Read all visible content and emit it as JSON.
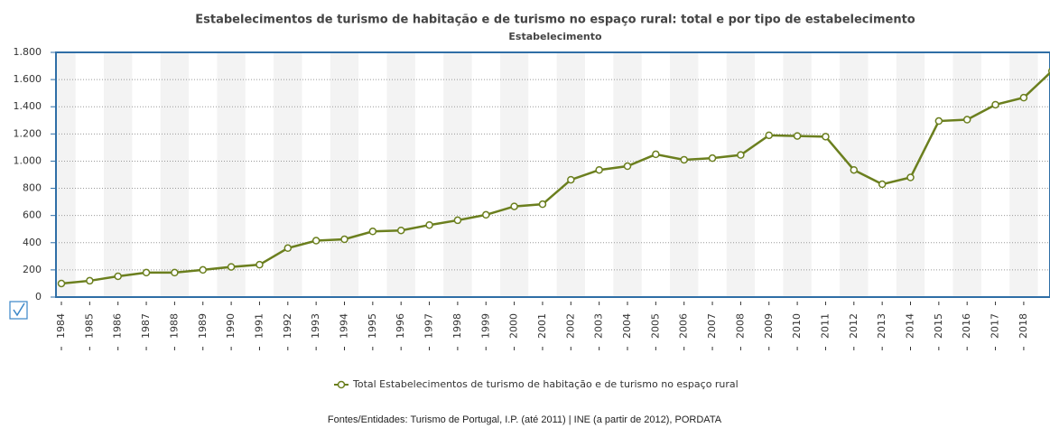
{
  "chart_data": {
    "type": "line",
    "title": "Estabelecimentos de turismo de habitação e de turismo no espaço rural: total e por tipo de estabelecimento",
    "subtitle": "Estabelecimento",
    "source": "Fontes/Entidades: Turismo de Portugal, I.P. (até 2011) | INE (a partir de 2012), PORDATA",
    "categories": [
      "1984",
      "1985",
      "1986",
      "1987",
      "1988",
      "1989",
      "1990",
      "1991",
      "1992",
      "1993",
      "1994",
      "1995",
      "1996",
      "1997",
      "1998",
      "1999",
      "2000",
      "2001",
      "2002",
      "2003",
      "2004",
      "2005",
      "2006",
      "2007",
      "2008",
      "2009",
      "2010",
      "2011",
      "2012",
      "2013",
      "2014",
      "2015",
      "2016",
      "2017",
      "2018",
      null
    ],
    "series": [
      {
        "name": "Total Estabelecimentos de turismo de habitação e de turismo no espaço rural",
        "color": "#6b7f1e",
        "values": [
          100,
          120,
          153,
          180,
          180,
          200,
          222,
          238,
          360,
          415,
          425,
          483,
          490,
          530,
          565,
          605,
          667,
          683,
          863,
          935,
          963,
          1050,
          1010,
          1022,
          1045,
          1190,
          1185,
          1180,
          935,
          830,
          880,
          1295,
          1305,
          1415,
          1467,
          1663
        ]
      }
    ],
    "ylim": [
      0,
      1800
    ],
    "yticks": [
      0,
      {
        "value": 200,
        "label": "200"
      },
      {
        "value": 400,
        "label": "400"
      },
      {
        "value": 600,
        "label": "600"
      },
      {
        "value": 800,
        "label": "800"
      },
      {
        "value": 1000,
        "label": "1.000"
      },
      {
        "value": 1200,
        "label": "1.200"
      },
      {
        "value": 1400,
        "label": "1.400"
      },
      {
        "value": 1600,
        "label": "1.600"
      },
      {
        "value": 1800,
        "label": "1.800"
      }
    ],
    "grid": true
  }
}
